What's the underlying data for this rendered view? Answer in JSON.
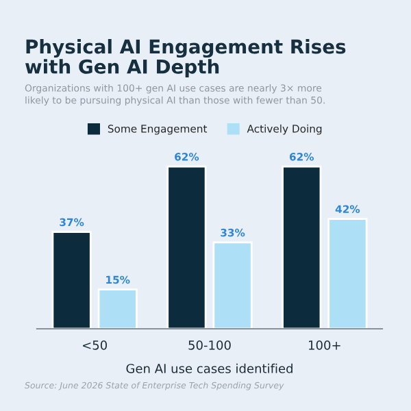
{
  "chart_data": {
    "type": "bar",
    "title": "Physical AI Engagement Rises\nwith Gen AI Depth",
    "subtitle": "Organizations with 100+ gen AI use cases are nearly 3× more\nlikely to be pursuing physical AI than those with fewer than 50.",
    "categories": [
      "<50",
      "50-100",
      "100+"
    ],
    "series": [
      {
        "name": "Some Engagement",
        "color": "#0c2b3c",
        "values": [
          37,
          62,
          62
        ],
        "value_labels": [
          "37%",
          "62%",
          "62%"
        ]
      },
      {
        "name": "Actively Doing",
        "color": "#addff7",
        "values": [
          15,
          33,
          42
        ],
        "value_labels": [
          "15%",
          "33%",
          "42%"
        ]
      }
    ],
    "xlabel": "Gen AI use cases identified",
    "annotations": [
      "Source: June 2026 State of Enterprise Tech Spending Survey"
    ],
    "legend": "top",
    "grid": false
  }
}
